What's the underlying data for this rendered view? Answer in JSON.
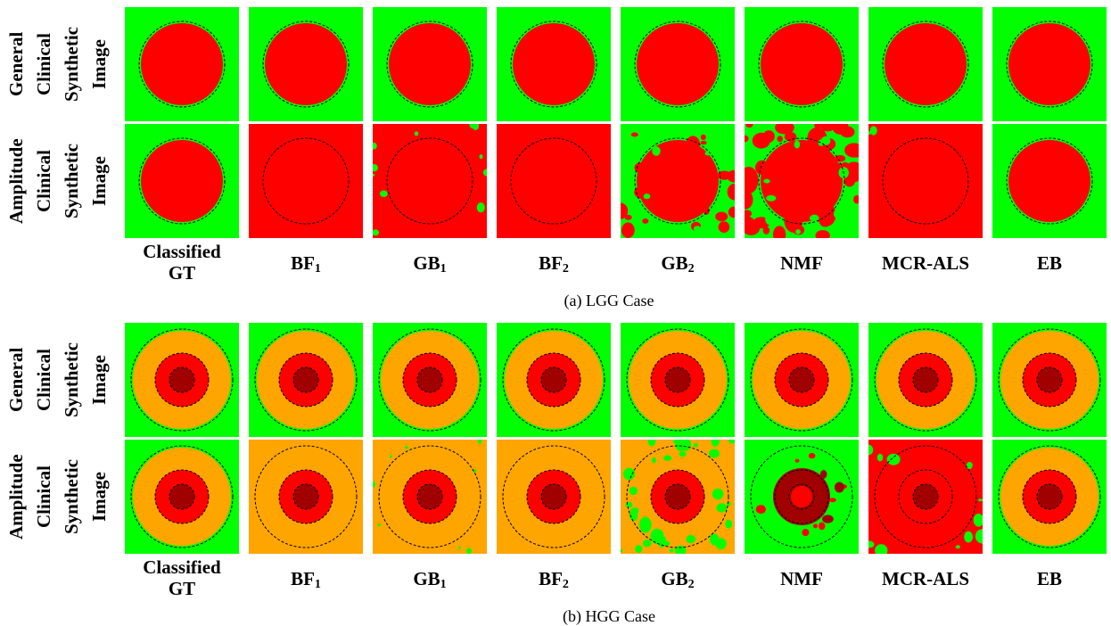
{
  "figure_parts": [
    {
      "case": "lgg",
      "caption": "(a) LGG Case",
      "rows": [
        {
          "label_lines": [
            "General",
            "Clinical",
            "Synthetic",
            "Image"
          ]
        },
        {
          "label_lines": [
            "Amplitude",
            "Clinical",
            "Synthetic",
            "Image"
          ]
        }
      ]
    },
    {
      "case": "hgg",
      "caption": "(b) HGG Case",
      "rows": [
        {
          "label_lines": [
            "General",
            "Clinical",
            "Synthetic",
            "Image"
          ]
        },
        {
          "label_lines": [
            "Amplitude",
            "Clinical",
            "Synthetic",
            "Image"
          ]
        }
      ]
    }
  ],
  "columns": [
    {
      "text": "Classified GT",
      "lines": [
        "Classified",
        "GT"
      ]
    },
    {
      "text": "BF1",
      "base": "BF",
      "sub": "1"
    },
    {
      "text": "GB1",
      "base": "GB",
      "sub": "1"
    },
    {
      "text": "BF2",
      "base": "BF",
      "sub": "2"
    },
    {
      "text": "GB2",
      "base": "GB",
      "sub": "2"
    },
    {
      "text": "NMF"
    },
    {
      "text": "MCR-ALS"
    },
    {
      "text": "EB"
    }
  ],
  "colors": {
    "healthy": "#00ff00",
    "edema": "#ffa500",
    "tumor": "#ff0000",
    "necrosis": "#a00000",
    "boundary": "#000000"
  }
}
